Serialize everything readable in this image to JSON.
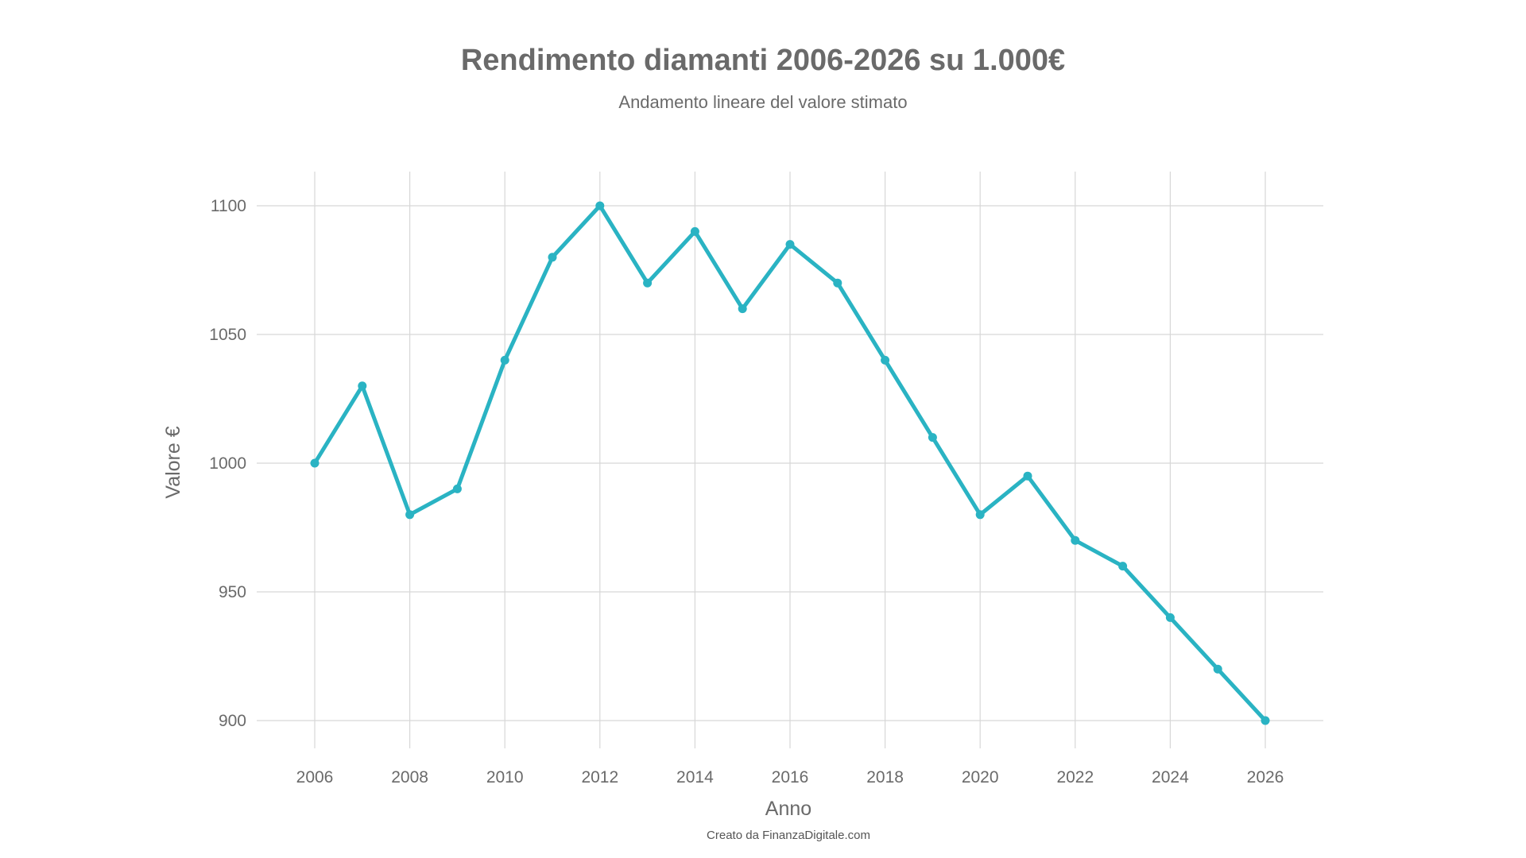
{
  "chart_data": {
    "type": "line",
    "title": "Rendimento diamanti 2006-2026 su 1.000€",
    "subtitle": "Andamento lineare del valore stimato",
    "xlabel": "Anno",
    "ylabel": "Valore €",
    "credit": "Creato da FinanzaDigitale.com",
    "x": [
      2006,
      2007,
      2008,
      2009,
      2010,
      2011,
      2012,
      2013,
      2014,
      2015,
      2016,
      2017,
      2018,
      2019,
      2020,
      2021,
      2022,
      2023,
      2024,
      2025,
      2026
    ],
    "series": [
      {
        "name": "",
        "values": [
          1000,
          1030,
          980,
          990,
          1040,
          1080,
          1100,
          1070,
          1090,
          1060,
          1085,
          1070,
          1040,
          1010,
          980,
          995,
          970,
          960,
          940,
          920,
          900
        ]
      }
    ],
    "x_ticks": [
      "2006",
      "2008",
      "2010",
      "2012",
      "2014",
      "2016",
      "2018",
      "2020",
      "2022",
      "2024",
      "2026"
    ],
    "y_ticks": [
      "900",
      "950",
      "1000",
      "1050",
      "1100"
    ],
    "xlim": [
      2006,
      2026
    ],
    "ylim": [
      900,
      1100
    ],
    "grid": true,
    "legend": "none",
    "line_color": "#2ab3c3"
  }
}
